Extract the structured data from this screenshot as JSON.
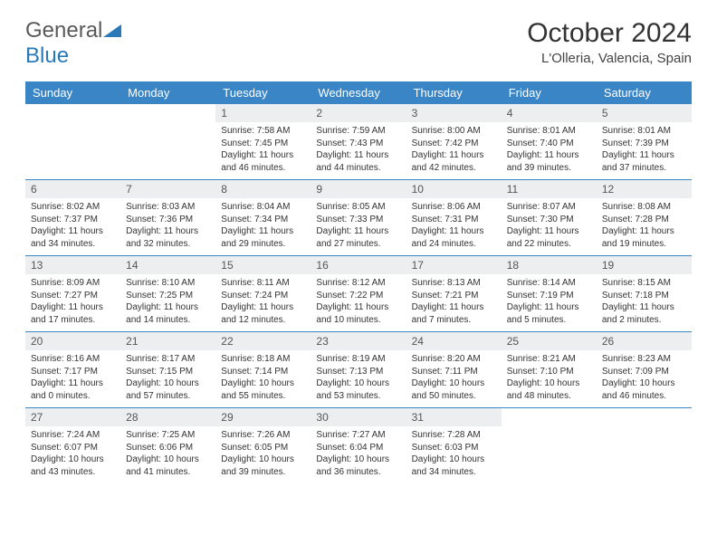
{
  "brand": {
    "name_part1": "General",
    "name_part2": "Blue"
  },
  "title": "October 2024",
  "location": "L'Olleria, Valencia, Spain",
  "colors": {
    "header_bg": "#3a85c6",
    "header_text": "#ffffff",
    "daynum_bg": "#eceef0",
    "border": "#3a85c6",
    "logo_gray": "#5a5a5a",
    "logo_blue": "#2a7ab8"
  },
  "weekdays": [
    "Sunday",
    "Monday",
    "Tuesday",
    "Wednesday",
    "Thursday",
    "Friday",
    "Saturday"
  ],
  "weeks": [
    [
      {
        "empty": true
      },
      {
        "empty": true
      },
      {
        "num": "1",
        "sunrise": "Sunrise: 7:58 AM",
        "sunset": "Sunset: 7:45 PM",
        "daylight": "Daylight: 11 hours and 46 minutes."
      },
      {
        "num": "2",
        "sunrise": "Sunrise: 7:59 AM",
        "sunset": "Sunset: 7:43 PM",
        "daylight": "Daylight: 11 hours and 44 minutes."
      },
      {
        "num": "3",
        "sunrise": "Sunrise: 8:00 AM",
        "sunset": "Sunset: 7:42 PM",
        "daylight": "Daylight: 11 hours and 42 minutes."
      },
      {
        "num": "4",
        "sunrise": "Sunrise: 8:01 AM",
        "sunset": "Sunset: 7:40 PM",
        "daylight": "Daylight: 11 hours and 39 minutes."
      },
      {
        "num": "5",
        "sunrise": "Sunrise: 8:01 AM",
        "sunset": "Sunset: 7:39 PM",
        "daylight": "Daylight: 11 hours and 37 minutes."
      }
    ],
    [
      {
        "num": "6",
        "sunrise": "Sunrise: 8:02 AM",
        "sunset": "Sunset: 7:37 PM",
        "daylight": "Daylight: 11 hours and 34 minutes."
      },
      {
        "num": "7",
        "sunrise": "Sunrise: 8:03 AM",
        "sunset": "Sunset: 7:36 PM",
        "daylight": "Daylight: 11 hours and 32 minutes."
      },
      {
        "num": "8",
        "sunrise": "Sunrise: 8:04 AM",
        "sunset": "Sunset: 7:34 PM",
        "daylight": "Daylight: 11 hours and 29 minutes."
      },
      {
        "num": "9",
        "sunrise": "Sunrise: 8:05 AM",
        "sunset": "Sunset: 7:33 PM",
        "daylight": "Daylight: 11 hours and 27 minutes."
      },
      {
        "num": "10",
        "sunrise": "Sunrise: 8:06 AM",
        "sunset": "Sunset: 7:31 PM",
        "daylight": "Daylight: 11 hours and 24 minutes."
      },
      {
        "num": "11",
        "sunrise": "Sunrise: 8:07 AM",
        "sunset": "Sunset: 7:30 PM",
        "daylight": "Daylight: 11 hours and 22 minutes."
      },
      {
        "num": "12",
        "sunrise": "Sunrise: 8:08 AM",
        "sunset": "Sunset: 7:28 PM",
        "daylight": "Daylight: 11 hours and 19 minutes."
      }
    ],
    [
      {
        "num": "13",
        "sunrise": "Sunrise: 8:09 AM",
        "sunset": "Sunset: 7:27 PM",
        "daylight": "Daylight: 11 hours and 17 minutes."
      },
      {
        "num": "14",
        "sunrise": "Sunrise: 8:10 AM",
        "sunset": "Sunset: 7:25 PM",
        "daylight": "Daylight: 11 hours and 14 minutes."
      },
      {
        "num": "15",
        "sunrise": "Sunrise: 8:11 AM",
        "sunset": "Sunset: 7:24 PM",
        "daylight": "Daylight: 11 hours and 12 minutes."
      },
      {
        "num": "16",
        "sunrise": "Sunrise: 8:12 AM",
        "sunset": "Sunset: 7:22 PM",
        "daylight": "Daylight: 11 hours and 10 minutes."
      },
      {
        "num": "17",
        "sunrise": "Sunrise: 8:13 AM",
        "sunset": "Sunset: 7:21 PM",
        "daylight": "Daylight: 11 hours and 7 minutes."
      },
      {
        "num": "18",
        "sunrise": "Sunrise: 8:14 AM",
        "sunset": "Sunset: 7:19 PM",
        "daylight": "Daylight: 11 hours and 5 minutes."
      },
      {
        "num": "19",
        "sunrise": "Sunrise: 8:15 AM",
        "sunset": "Sunset: 7:18 PM",
        "daylight": "Daylight: 11 hours and 2 minutes."
      }
    ],
    [
      {
        "num": "20",
        "sunrise": "Sunrise: 8:16 AM",
        "sunset": "Sunset: 7:17 PM",
        "daylight": "Daylight: 11 hours and 0 minutes."
      },
      {
        "num": "21",
        "sunrise": "Sunrise: 8:17 AM",
        "sunset": "Sunset: 7:15 PM",
        "daylight": "Daylight: 10 hours and 57 minutes."
      },
      {
        "num": "22",
        "sunrise": "Sunrise: 8:18 AM",
        "sunset": "Sunset: 7:14 PM",
        "daylight": "Daylight: 10 hours and 55 minutes."
      },
      {
        "num": "23",
        "sunrise": "Sunrise: 8:19 AM",
        "sunset": "Sunset: 7:13 PM",
        "daylight": "Daylight: 10 hours and 53 minutes."
      },
      {
        "num": "24",
        "sunrise": "Sunrise: 8:20 AM",
        "sunset": "Sunset: 7:11 PM",
        "daylight": "Daylight: 10 hours and 50 minutes."
      },
      {
        "num": "25",
        "sunrise": "Sunrise: 8:21 AM",
        "sunset": "Sunset: 7:10 PM",
        "daylight": "Daylight: 10 hours and 48 minutes."
      },
      {
        "num": "26",
        "sunrise": "Sunrise: 8:23 AM",
        "sunset": "Sunset: 7:09 PM",
        "daylight": "Daylight: 10 hours and 46 minutes."
      }
    ],
    [
      {
        "num": "27",
        "sunrise": "Sunrise: 7:24 AM",
        "sunset": "Sunset: 6:07 PM",
        "daylight": "Daylight: 10 hours and 43 minutes."
      },
      {
        "num": "28",
        "sunrise": "Sunrise: 7:25 AM",
        "sunset": "Sunset: 6:06 PM",
        "daylight": "Daylight: 10 hours and 41 minutes."
      },
      {
        "num": "29",
        "sunrise": "Sunrise: 7:26 AM",
        "sunset": "Sunset: 6:05 PM",
        "daylight": "Daylight: 10 hours and 39 minutes."
      },
      {
        "num": "30",
        "sunrise": "Sunrise: 7:27 AM",
        "sunset": "Sunset: 6:04 PM",
        "daylight": "Daylight: 10 hours and 36 minutes."
      },
      {
        "num": "31",
        "sunrise": "Sunrise: 7:28 AM",
        "sunset": "Sunset: 6:03 PM",
        "daylight": "Daylight: 10 hours and 34 minutes."
      },
      {
        "empty": true
      },
      {
        "empty": true
      }
    ]
  ]
}
